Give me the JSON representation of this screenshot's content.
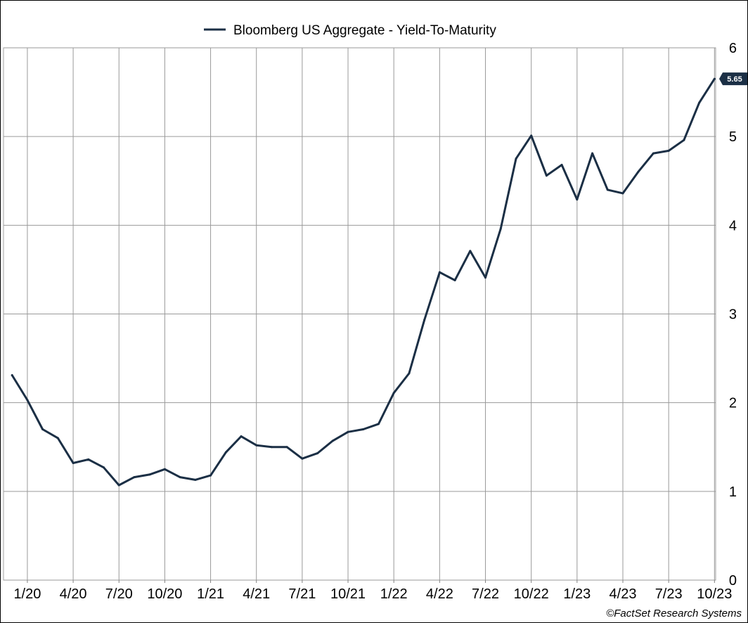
{
  "chart_data": {
    "type": "line",
    "title": "",
    "xlabel": "",
    "ylabel": "",
    "ylim": [
      0,
      6
    ],
    "yticks": [
      "0",
      "1",
      "2",
      "3",
      "4",
      "5",
      "6"
    ],
    "xticks": [
      "1/20",
      "4/20",
      "7/20",
      "10/20",
      "1/21",
      "4/21",
      "7/21",
      "10/21",
      "1/22",
      "4/22",
      "7/22",
      "10/22",
      "1/23",
      "4/23",
      "7/23",
      "10/23"
    ],
    "grid": true,
    "legend_position": "top-center",
    "series": [
      {
        "name": "Bloomberg US Aggregate - Yield-To-Maturity",
        "color": "#1b2f45",
        "x": [
          "12/19",
          "1/20",
          "2/20",
          "3/20",
          "4/20",
          "5/20",
          "6/20",
          "7/20",
          "8/20",
          "9/20",
          "10/20",
          "11/20",
          "12/20",
          "1/21",
          "2/21",
          "3/21",
          "4/21",
          "5/21",
          "6/21",
          "7/21",
          "8/21",
          "9/21",
          "10/21",
          "11/21",
          "12/21",
          "1/22",
          "2/22",
          "3/22",
          "4/22",
          "5/22",
          "6/22",
          "7/22",
          "8/22",
          "9/22",
          "10/22",
          "11/22",
          "12/22",
          "1/23",
          "2/23",
          "3/23",
          "4/23",
          "5/23",
          "6/23",
          "7/23",
          "8/23",
          "9/23",
          "10/23"
        ],
        "values": [
          2.31,
          2.03,
          1.7,
          1.6,
          1.32,
          1.36,
          1.27,
          1.07,
          1.16,
          1.19,
          1.25,
          1.16,
          1.13,
          1.18,
          1.44,
          1.62,
          1.52,
          1.5,
          1.5,
          1.37,
          1.43,
          1.57,
          1.67,
          1.7,
          1.76,
          2.11,
          2.33,
          2.93,
          3.47,
          3.38,
          3.71,
          3.41,
          3.96,
          4.75,
          5.01,
          4.56,
          4.68,
          4.29,
          4.81,
          4.4,
          4.36,
          4.6,
          4.81,
          4.84,
          4.96,
          5.38,
          5.65
        ]
      }
    ],
    "last_value_label": "5.65"
  },
  "credit": "©FactSet Research Systems"
}
